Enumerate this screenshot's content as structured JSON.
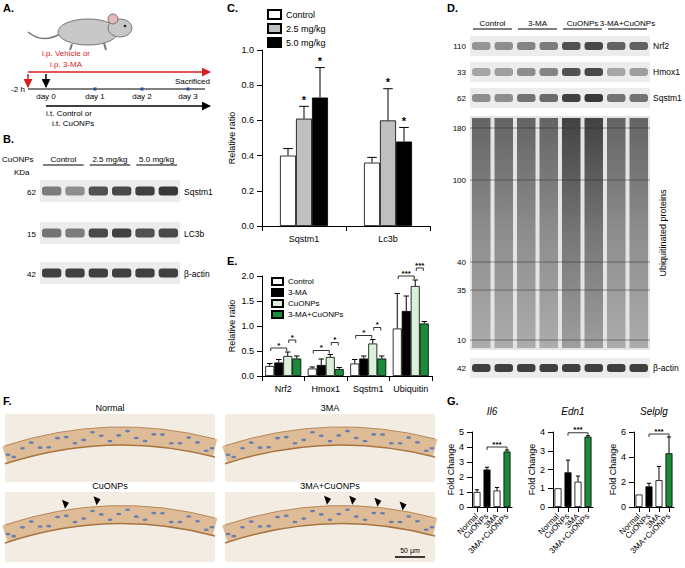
{
  "chart_data": [
    {
      "type": "bar",
      "ylabel": "Relative ratio",
      "categories": [
        "Sqstm1",
        "Lc3b"
      ],
      "series": [
        {
          "name": "Control",
          "color": "#ffffff",
          "values": [
            0.4,
            0.36
          ],
          "errors": [
            0.04,
            0.03
          ]
        },
        {
          "name": "2.5 mg/kg",
          "color": "#bfbfbf",
          "values": [
            0.61,
            0.6
          ],
          "errors": [
            0.07,
            0.18
          ]
        },
        {
          "name": "5.0 mg/kg",
          "color": "#000000",
          "values": [
            0.73,
            0.48
          ],
          "errors": [
            0.17,
            0.08
          ]
        }
      ],
      "ylim": [
        0,
        1
      ],
      "yticks": [
        {
          "value": 0,
          "label": "0.0"
        },
        0.2,
        0.4,
        0.6,
        0.8,
        {
          "value": 1,
          "label": "1.0"
        }
      ],
      "legend": "top-left",
      "grid": false,
      "annotations": [
        {
          "text": "*",
          "series": "2.5 mg/kg",
          "category": "Sqstm1"
        },
        {
          "text": "*",
          "series": "5.0 mg/kg",
          "category": "Sqstm1"
        },
        {
          "text": "*",
          "series": "2.5 mg/kg",
          "category": "Lc3b"
        },
        {
          "text": "*",
          "series": "5.0 mg/kg",
          "category": "Lc3b"
        }
      ]
    },
    {
      "type": "bar",
      "ylabel": "Relative ratio",
      "categories": [
        "Nrf2",
        "Hmox1",
        "Sqstm1",
        "Ubiquitin"
      ],
      "series": [
        {
          "name": "Control",
          "color": "#ffffff",
          "values": [
            0.2,
            0.15,
            0.25,
            0.95
          ],
          "errors": [
            0.05,
            0.03,
            0.08,
            0.7
          ]
        },
        {
          "name": "3-MA",
          "color": "#000000",
          "values": [
            0.27,
            0.22,
            0.35,
            1.3
          ],
          "errors": [
            0.06,
            0.12,
            0.05,
            0.3
          ]
        },
        {
          "name": "CuONPs",
          "color": "#d9f0d9",
          "values": [
            0.4,
            0.38,
            0.65,
            1.8
          ],
          "errors": [
            0.08,
            0.05,
            0.08,
            0.12
          ]
        },
        {
          "name": "3-MA+CuONPs",
          "color": "#1b8a3a",
          "values": [
            0.35,
            0.14,
            0.35,
            1.05
          ],
          "errors": [
            0.05,
            0.03,
            0.05,
            0.04
          ]
        }
      ],
      "ylim": [
        0,
        2
      ],
      "yticks": [
        {
          "value": 0,
          "label": "0.0"
        },
        0.5,
        {
          "value": 1,
          "label": "1.0"
        },
        1.5,
        {
          "value": 2,
          "label": "2.0"
        }
      ],
      "legend": "top-left",
      "grid": false,
      "annotations": [
        {
          "text": "*",
          "category": "Nrf2",
          "from": "Control",
          "to": "CuONPs"
        },
        {
          "text": "*",
          "category": "Nrf2",
          "from": "CuONPs",
          "to": "3-MA+CuONPs"
        },
        {
          "text": "*",
          "category": "Hmox1",
          "from": "Control",
          "to": "CuONPs"
        },
        {
          "text": "*",
          "category": "Hmox1",
          "from": "CuONPs",
          "to": "3-MA+CuONPs"
        },
        {
          "text": "*",
          "category": "Sqstm1",
          "from": "Control",
          "to": "CuONPs"
        },
        {
          "text": "*",
          "category": "Sqstm1",
          "from": "CuONPs",
          "to": "3-MA+CuONPs"
        },
        {
          "text": "***",
          "category": "Ubiquitin",
          "from": "Control",
          "to": "CuONPs"
        },
        {
          "text": "***",
          "category": "Ubiquitin",
          "from": "CuONPs",
          "to": "3-MA+CuONPs"
        }
      ]
    },
    {
      "type": "bar",
      "title": "Il6",
      "ylabel": "Fold Change",
      "categories": [
        "Normal",
        "CuONPs",
        "3MA",
        "3MA+CuONPs"
      ],
      "values": [
        1.0,
        2.5,
        1.1,
        3.7
      ],
      "errors": [
        0.15,
        0.15,
        0.2,
        0.1
      ],
      "colors": [
        "#ffffff",
        "#000000",
        "#ffffff",
        "#1b8a3a"
      ],
      "ylim": [
        0,
        5
      ],
      "yticks": [
        0,
        1,
        2,
        3,
        4,
        5
      ],
      "grid": false,
      "annotations": [
        {
          "text": "***",
          "from": "CuONPs",
          "to": "3MA+CuONPs"
        }
      ]
    },
    {
      "type": "bar",
      "title": "Edn1",
      "ylabel": "Fold Change",
      "categories": [
        "Normal",
        "CuONPs",
        "3MA",
        "3MA+CuONPs"
      ],
      "values": [
        1.0,
        1.85,
        1.35,
        3.75
      ],
      "errors": [
        0,
        0.65,
        0.3,
        0.05
      ],
      "colors": [
        "#ffffff",
        "#000000",
        "#ffffff",
        "#1b8a3a"
      ],
      "ylim": [
        0,
        4
      ],
      "yticks": [
        0,
        1,
        2,
        3,
        4
      ],
      "grid": false,
      "annotations": [
        {
          "text": "***",
          "from": "CuONPs",
          "to": "3MA+CuONPs"
        }
      ]
    },
    {
      "type": "bar",
      "title": "Selplg",
      "ylabel": "Fold Change",
      "categories": [
        "Normal",
        "CuONPs",
        "3MA",
        "3MA+CuONPs"
      ],
      "values": [
        1.0,
        1.65,
        2.15,
        4.3
      ],
      "errors": [
        0,
        0.25,
        1.1,
        1.3
      ],
      "colors": [
        "#ffffff",
        "#000000",
        "#ffffff",
        "#1b8a3a"
      ],
      "ylim": [
        0,
        6
      ],
      "yticks": [
        0,
        2,
        4,
        6
      ],
      "grid": false,
      "annotations": [
        {
          "text": "***",
          "from": "CuONPs",
          "to": "3MA+CuONPs"
        }
      ]
    }
  ],
  "panels": {
    "letters": [
      "A.",
      "B.",
      "C.",
      "D.",
      "E.",
      "F.",
      "G."
    ],
    "A": {
      "ip_treatment": [
        "i.p. Vehicle or",
        "i.p. 3-MA"
      ],
      "timepoints": [
        "-2 h",
        "day 0",
        "day 1",
        "day 2",
        "day 3"
      ],
      "end": "Sacrificed",
      "it_treatment": [
        "i.t. Control or",
        "i.t. CuONPs"
      ]
    },
    "B": {
      "treatment_label": "CuONPs",
      "unit": "KDa",
      "groups": [
        "Control",
        "2.5 mg/kg",
        "5.0 mg/kg"
      ],
      "rows": [
        {
          "marker": 62,
          "name": "Sqstm1"
        },
        {
          "marker": 15,
          "name": "LC3b"
        },
        {
          "marker": 42,
          "name": "β-actin"
        }
      ]
    },
    "D": {
      "groups": [
        "Control",
        "3-MA",
        "CuONPs",
        "3-MA+CuONPs"
      ],
      "rows": [
        {
          "marker": 110,
          "name": "Nrf2"
        },
        {
          "marker": 33,
          "name": "Hmox1"
        },
        {
          "marker": 62,
          "name": "Sqstm1"
        },
        {
          "markers": [
            180,
            100,
            40,
            35,
            10
          ],
          "name": "Ubiquitinated proteins"
        },
        {
          "marker": 42,
          "name": "β-actin"
        }
      ]
    },
    "F": {
      "images": [
        "Normal",
        "3MA",
        "CuONPs",
        "3MA+CuONPs"
      ],
      "scale_bar": "50 μm"
    }
  }
}
